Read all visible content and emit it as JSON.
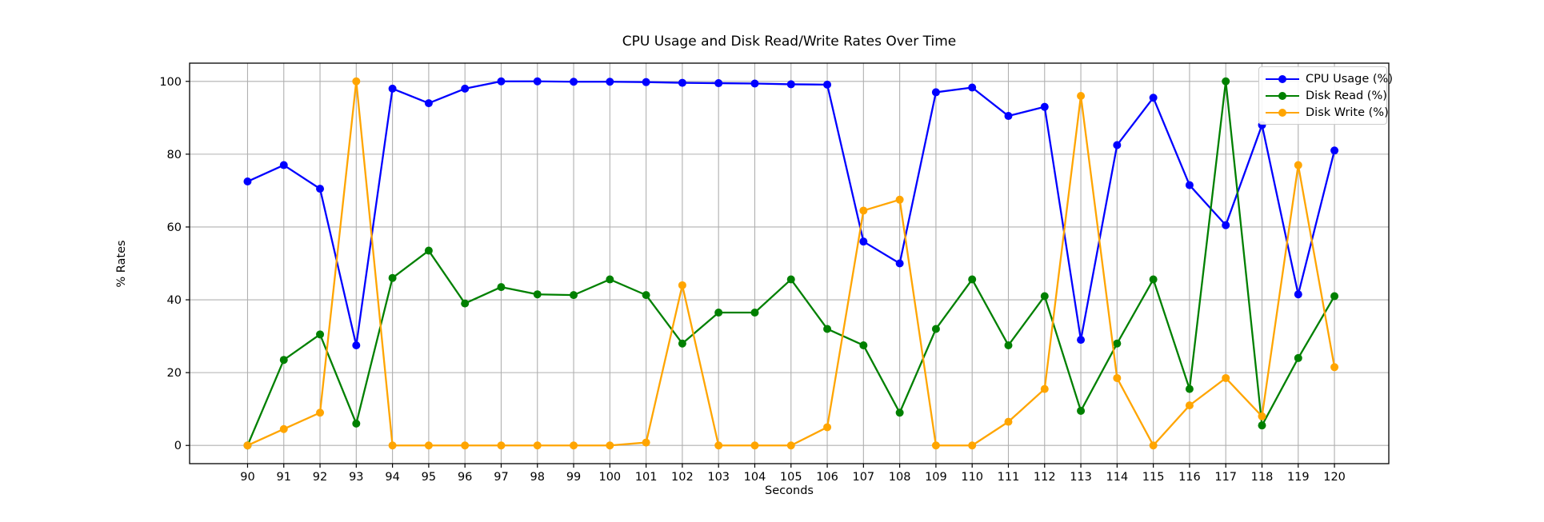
{
  "chart_data": {
    "type": "line",
    "title": "CPU Usage and Disk Read/Write Rates Over Time",
    "xlabel": "Seconds",
    "ylabel": "% Rates",
    "x": [
      90,
      91,
      92,
      93,
      94,
      95,
      96,
      97,
      98,
      99,
      100,
      101,
      102,
      103,
      104,
      105,
      106,
      107,
      108,
      109,
      110,
      111,
      112,
      113,
      114,
      115,
      116,
      117,
      118,
      119,
      120
    ],
    "series": [
      {
        "name": "CPU Usage (%)",
        "color": "#0000ff",
        "values": [
          72.5,
          77,
          70.5,
          27.5,
          98,
          94,
          98,
          100,
          100,
          99.9,
          99.9,
          99.8,
          99.6,
          99.5,
          99.4,
          99.2,
          99.1,
          56,
          50,
          97,
          98.3,
          90.5,
          93,
          29,
          82.5,
          95.5,
          71.5,
          60.5,
          88,
          41.5,
          81
        ]
      },
      {
        "name": "Disk Read (%)",
        "color": "#008000",
        "values": [
          0,
          23.5,
          30.5,
          6,
          46,
          53.5,
          39,
          43.5,
          41.5,
          41.3,
          45.6,
          41.3,
          28,
          36.5,
          36.5,
          45.6,
          32,
          27.5,
          9,
          32,
          45.6,
          27.5,
          41,
          9.5,
          28,
          45.6,
          15.5,
          100,
          5.5,
          24,
          41
        ]
      },
      {
        "name": "Disk Write (%)",
        "color": "#ffa500",
        "values": [
          0,
          4.5,
          9,
          100,
          0,
          0,
          0,
          0,
          0,
          0,
          0,
          0.8,
          44,
          0,
          0,
          0,
          5,
          64.5,
          67.5,
          0,
          0,
          6.5,
          15.5,
          96,
          18.5,
          0,
          11,
          18.5,
          8,
          77,
          21.5
        ]
      }
    ],
    "xticks": [
      90,
      91,
      92,
      93,
      94,
      95,
      96,
      97,
      98,
      99,
      100,
      101,
      102,
      103,
      104,
      105,
      106,
      107,
      108,
      109,
      110,
      111,
      112,
      113,
      114,
      115,
      116,
      117,
      118,
      119,
      120
    ],
    "yticks": [
      0,
      20,
      40,
      60,
      80,
      100
    ],
    "xlim": [
      88.4,
      121.5
    ],
    "ylim": [
      -5,
      105
    ],
    "grid": true,
    "grid_color": "#b0b0b0",
    "axis_color": "#000000",
    "background": "#ffffff",
    "legend_position": "upper right",
    "legend_border_color": "#cccccc"
  }
}
